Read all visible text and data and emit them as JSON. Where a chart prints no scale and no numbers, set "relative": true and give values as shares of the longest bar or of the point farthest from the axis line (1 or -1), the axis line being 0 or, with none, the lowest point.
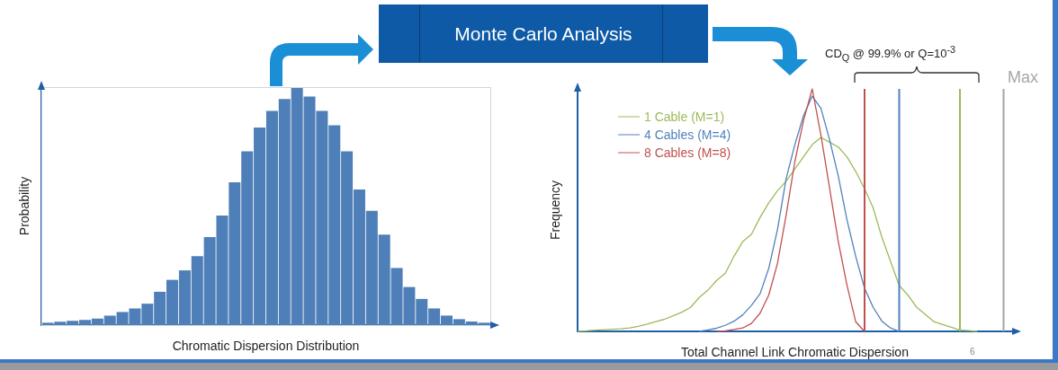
{
  "chart_data": [
    {
      "type": "bar",
      "relative": true,
      "xlabel": "Chromatic Dispersion Distribution",
      "ylabel": "Probability",
      "color": "#4f7fb8",
      "grid": false,
      "legend": false,
      "categories": [
        null,
        null,
        null,
        null,
        null,
        null,
        null,
        null,
        null,
        null,
        null,
        null,
        null,
        null,
        null,
        null,
        null,
        null,
        null,
        null,
        null,
        null,
        null,
        null,
        null,
        null,
        null,
        null,
        null,
        null,
        null,
        null,
        null,
        null,
        null,
        null
      ],
      "values": [
        0.01,
        0.014,
        0.018,
        0.022,
        0.027,
        0.04,
        0.055,
        0.07,
        0.09,
        0.14,
        0.19,
        0.23,
        0.29,
        0.37,
        0.46,
        0.6,
        0.73,
        0.83,
        0.9,
        0.95,
        1,
        0.96,
        0.9,
        0.84,
        0.73,
        0.57,
        0.48,
        0.38,
        0.24,
        0.16,
        0.11,
        0.07,
        0.04,
        0.025,
        0.015,
        0.01
      ]
    },
    {
      "type": "other",
      "title": "Monte Carlo Analysis"
    },
    {
      "type": "line",
      "relative": true,
      "xlabel": "Total Channel Link Chromatic Dispersion",
      "ylabel": "Frequency",
      "grid": false,
      "legend": "top left",
      "marker": "none",
      "line_style": "solid",
      "categories": [
        null,
        null,
        null,
        null,
        null,
        null,
        null,
        null,
        null,
        null,
        null,
        null,
        null,
        null,
        null,
        null,
        null,
        null,
        null,
        null,
        null,
        null,
        null,
        null,
        null,
        null,
        null,
        null,
        null,
        null,
        null,
        null,
        null,
        null,
        null,
        null,
        null,
        null,
        null,
        null,
        null,
        null,
        null,
        null,
        null,
        null,
        null,
        null,
        null,
        null,
        null
      ],
      "series": [
        {
          "name": "1 Cable (M=1)",
          "color": "#9bbb59",
          "values": [
            0,
            0.002,
            0.005,
            0.007,
            0.009,
            0.011,
            0.014,
            0.021,
            0.03,
            0.04,
            0.05,
            0.064,
            0.079,
            0.099,
            0.14,
            0.17,
            0.21,
            0.24,
            0.31,
            0.37,
            0.4,
            0.47,
            0.53,
            0.58,
            0.62,
            0.67,
            0.72,
            0.77,
            0.8,
            0.78,
            0.76,
            0.72,
            0.66,
            0.59,
            0.51,
            0.39,
            0.29,
            0.19,
            0.15,
            0.1,
            0.07,
            0.04,
            0.028,
            0.017,
            0.005,
            0.003,
            0,
            null,
            null,
            null,
            null
          ]
        },
        {
          "name": "4 Cables (M=4)",
          "color": "#4f81bd",
          "values": [
            null,
            null,
            null,
            null,
            null,
            null,
            null,
            null,
            null,
            null,
            null,
            null,
            null,
            null,
            0,
            0.006,
            0.013,
            0.025,
            0.042,
            0.068,
            0.107,
            0.155,
            0.26,
            0.42,
            0.63,
            0.77,
            0.89,
            0.97,
            0.92,
            0.79,
            0.64,
            0.46,
            0.31,
            0.18,
            0.1,
            0.043,
            0.014,
            0,
            null,
            null,
            null,
            null,
            null,
            null,
            null,
            null,
            null,
            null,
            null,
            null,
            null
          ]
        },
        {
          "name": "8 Cables (M=8)",
          "color": "#c0504d",
          "values": [
            null,
            null,
            null,
            null,
            null,
            null,
            null,
            null,
            null,
            null,
            null,
            null,
            null,
            null,
            null,
            null,
            0,
            0.002,
            0.008,
            0.014,
            0.033,
            0.075,
            0.15,
            0.28,
            0.48,
            0.7,
            0.87,
            1,
            0.81,
            0.59,
            0.37,
            0.19,
            0.04,
            0,
            null,
            null,
            null,
            null,
            null,
            null,
            null,
            null,
            null,
            null,
            null,
            null,
            null,
            null,
            null,
            null,
            null
          ]
        }
      ],
      "annotations": [
        "CD$_{Q}$ @ 99.9% or Q=10$^{-3}$",
        "6",
        "Max"
      ]
    }
  ]
}
